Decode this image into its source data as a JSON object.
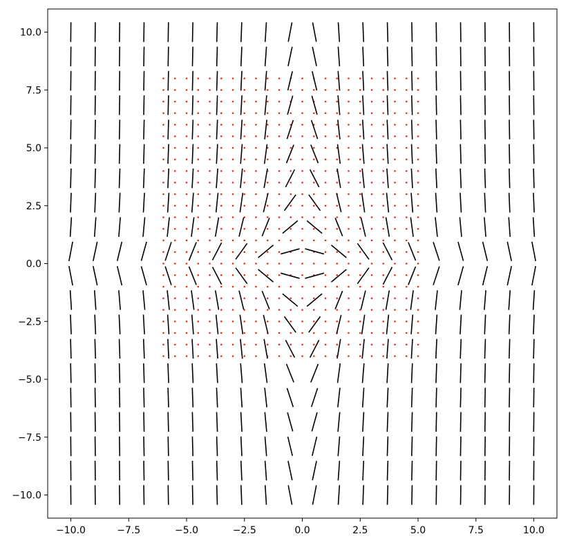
{
  "chart_data": {
    "type": "quiver",
    "title": "",
    "xlabel": "",
    "ylabel": "",
    "xlim": [
      -11.0,
      11.0
    ],
    "ylim": [
      -11.0,
      11.0
    ],
    "grid": false,
    "legend": null,
    "x_ticks": [
      -10.0,
      -7.5,
      -5.0,
      -2.5,
      0.0,
      2.5,
      5.0,
      7.5,
      10.0
    ],
    "y_ticks": [
      -10.0,
      -7.5,
      -5.0,
      -2.5,
      0.0,
      2.5,
      5.0,
      7.5,
      10.0
    ],
    "x_tick_labels": [
      "−10.0",
      "−7.5",
      "−5.0",
      "−2.5",
      "0.0",
      "2.5",
      "5.0",
      "7.5",
      "10.0"
    ],
    "y_tick_labels": [
      "−10.0",
      "−7.5",
      "−5.0",
      "−2.5",
      "0.0",
      "2.5",
      "5.0",
      "7.5",
      "10.0"
    ],
    "direction_field": {
      "description_of_slope": "segments with slope dy/dx = -x*y, sampled on a 20x20 grid from -10 to 10",
      "x_start": -10.0,
      "x_end": 10.0,
      "y_start": -10.0,
      "y_end": 10.0,
      "n": 20,
      "segment_length": 0.85,
      "color": "#000000"
    },
    "dot_grid": {
      "x_start": -6.0,
      "x_end": 5.0,
      "y_start": -4.0,
      "y_end": 8.0,
      "step": 0.5,
      "color": "#e8281e"
    }
  }
}
